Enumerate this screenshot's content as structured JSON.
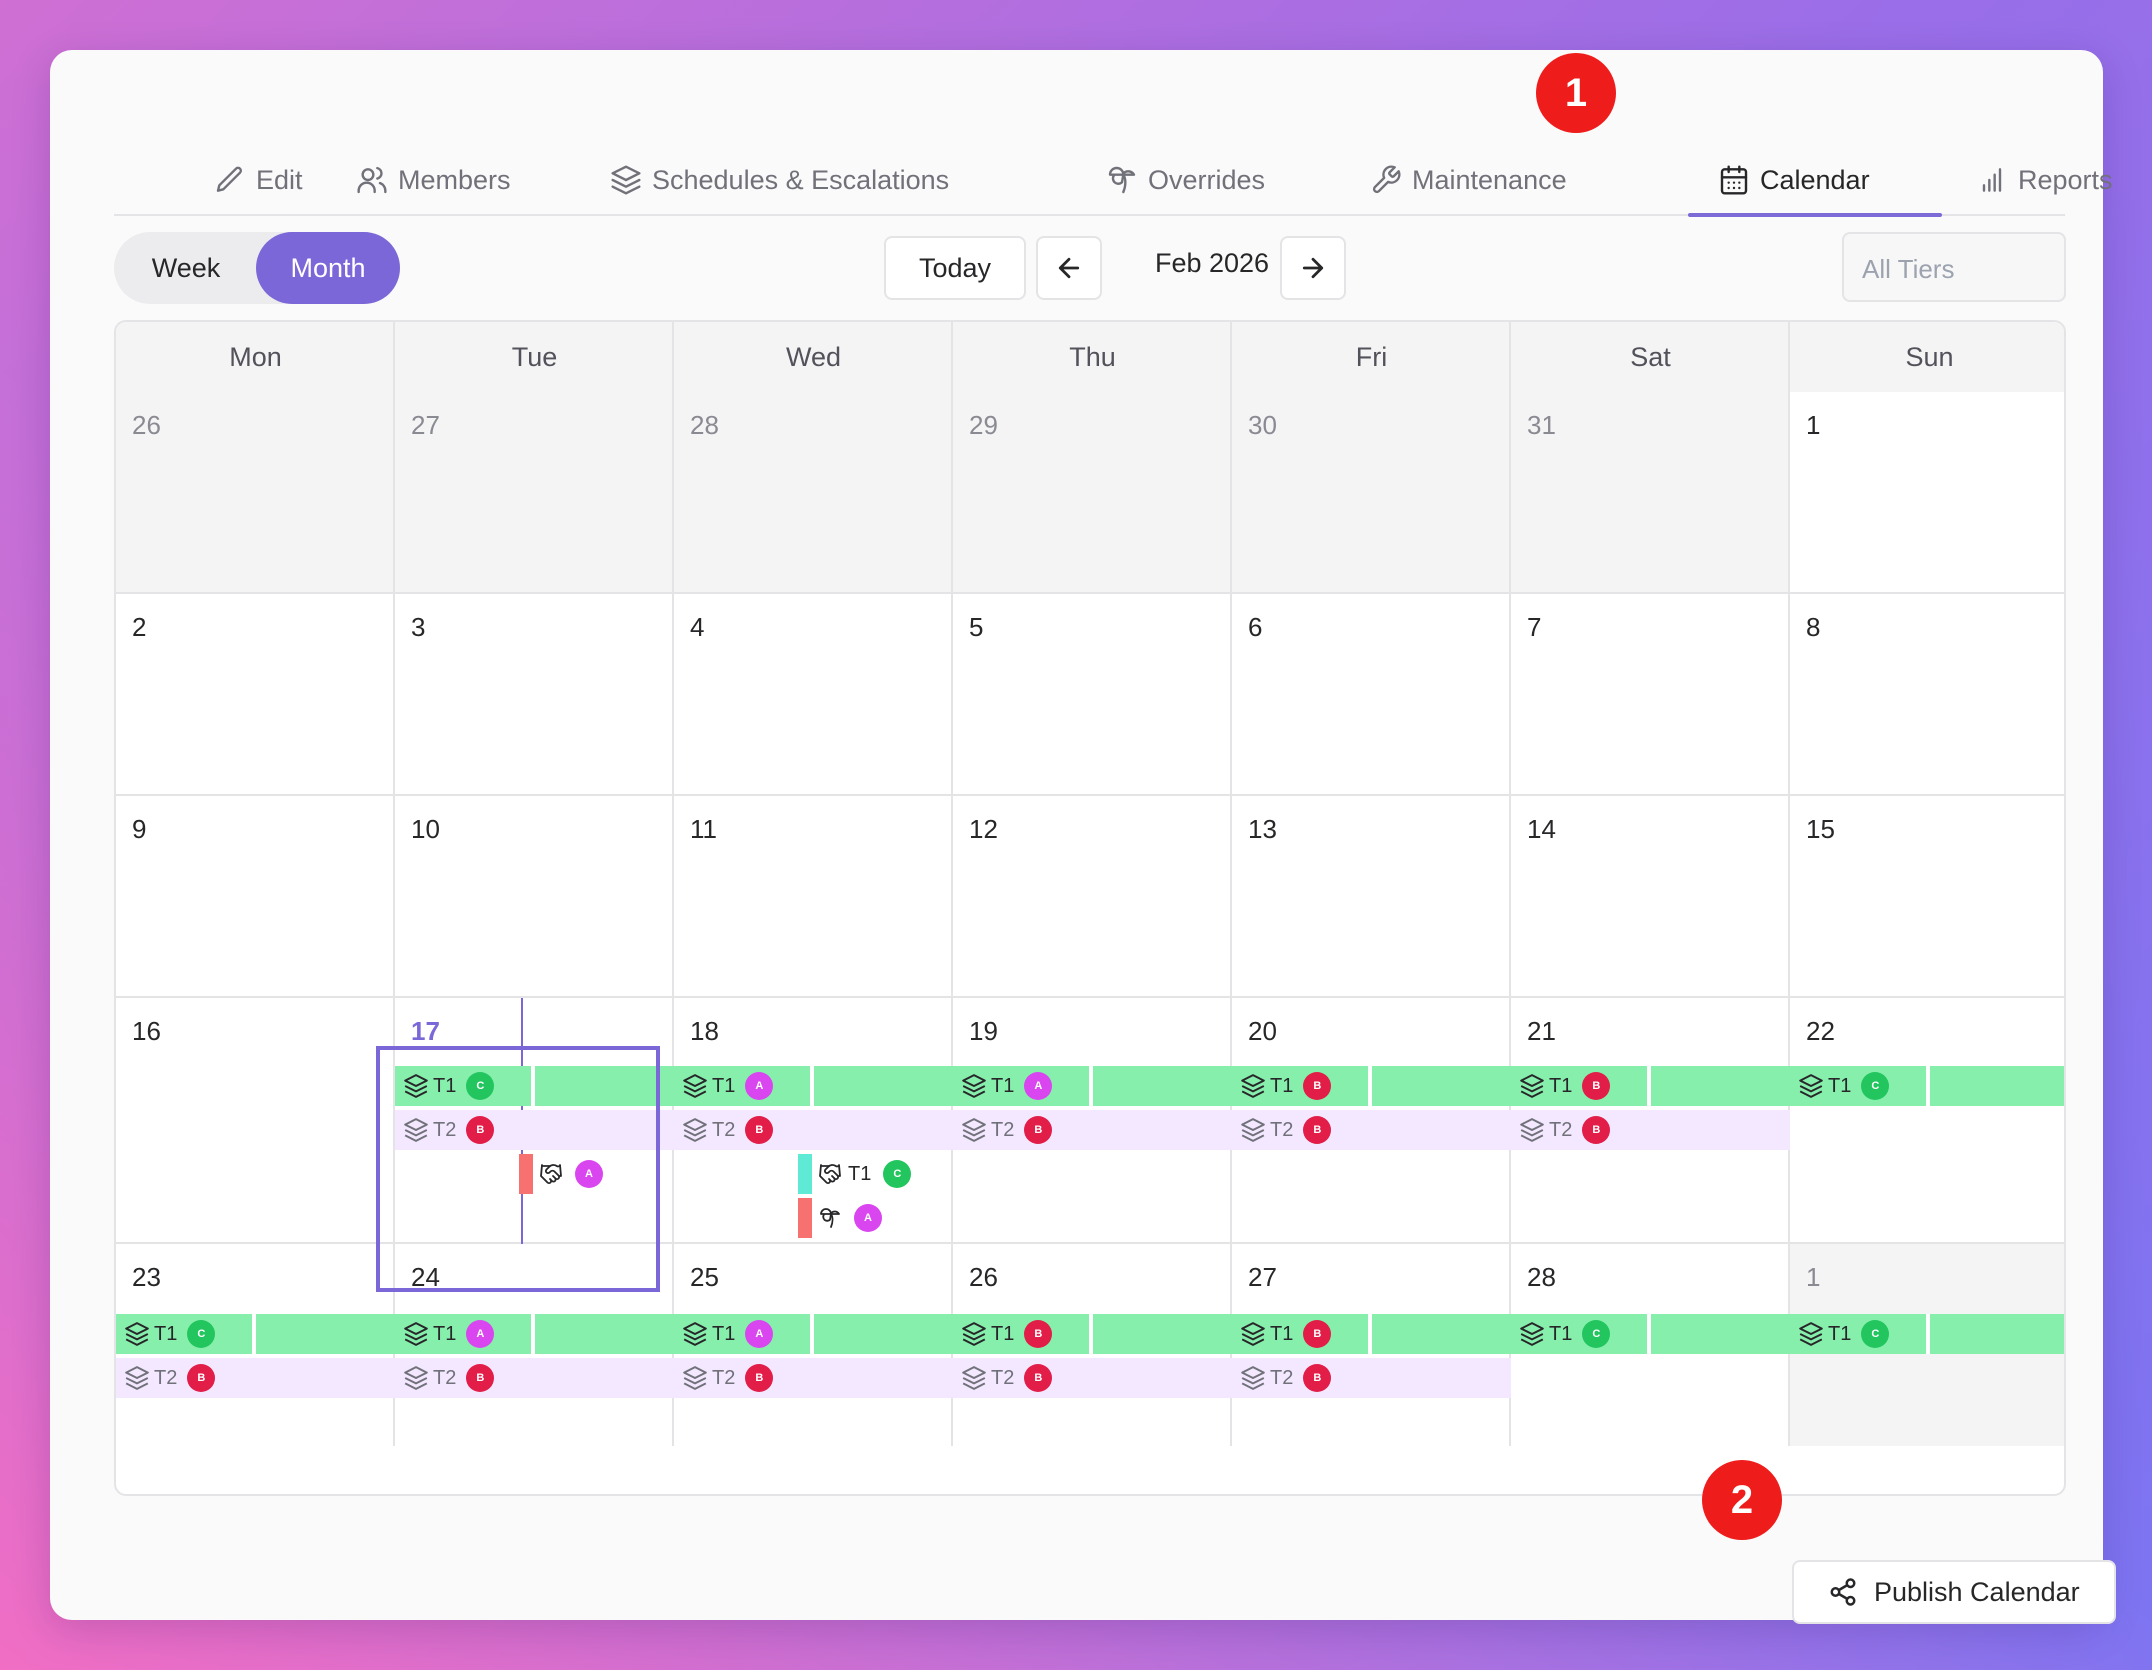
{
  "tabs": [
    {
      "label": "Edit",
      "icon": "pencil-icon"
    },
    {
      "label": "Members",
      "icon": "users-icon"
    },
    {
      "label": "Schedules & Escalations",
      "icon": "layers-icon"
    },
    {
      "label": "Overrides",
      "icon": "palm-tree-icon"
    },
    {
      "label": "Maintenance",
      "icon": "wrench-icon"
    },
    {
      "label": "Calendar",
      "icon": "calendar-icon",
      "active": true
    },
    {
      "label": "Reports",
      "icon": "bar-chart-icon"
    }
  ],
  "badges": {
    "one": "1",
    "two": "2"
  },
  "toolbar": {
    "week_label": "Week",
    "month_label": "Month",
    "view": "Month",
    "today_label": "Today",
    "month_title": "Feb 2026",
    "tiers_placeholder": "All Tiers"
  },
  "calendar": {
    "weekdays": [
      "Mon",
      "Tue",
      "Wed",
      "Thu",
      "Fri",
      "Sat",
      "Sun"
    ],
    "weeks": [
      {
        "days": [
          {
            "n": "26",
            "out": true
          },
          {
            "n": "27",
            "out": true
          },
          {
            "n": "28",
            "out": true
          },
          {
            "n": "29",
            "out": true
          },
          {
            "n": "30",
            "out": true
          },
          {
            "n": "31",
            "out": true
          },
          {
            "n": "1"
          }
        ]
      },
      {
        "days": [
          {
            "n": "2"
          },
          {
            "n": "3"
          },
          {
            "n": "4"
          },
          {
            "n": "5"
          },
          {
            "n": "6"
          },
          {
            "n": "7"
          },
          {
            "n": "8"
          }
        ]
      },
      {
        "days": [
          {
            "n": "9"
          },
          {
            "n": "10"
          },
          {
            "n": "11"
          },
          {
            "n": "12"
          },
          {
            "n": "13"
          },
          {
            "n": "14"
          },
          {
            "n": "15"
          }
        ]
      },
      {
        "days": [
          {
            "n": "16"
          },
          {
            "n": "17",
            "today": true
          },
          {
            "n": "18"
          },
          {
            "n": "19"
          },
          {
            "n": "20"
          },
          {
            "n": "21"
          },
          {
            "n": "22"
          }
        ]
      },
      {
        "days": [
          {
            "n": "23"
          },
          {
            "n": "24"
          },
          {
            "n": "25"
          },
          {
            "n": "26"
          },
          {
            "n": "27"
          },
          {
            "n": "28"
          },
          {
            "n": "1",
            "out": true
          }
        ]
      }
    ],
    "tier_labels": {
      "t1": "T1",
      "t2": "T2"
    },
    "shifts": {
      "week4": {
        "t1": [
          "",
          "C",
          "A",
          "A",
          "B",
          "B",
          "C"
        ],
        "t2": [
          "",
          "B",
          "B",
          "B",
          "B",
          "B",
          ""
        ]
      },
      "week5": {
        "t1": [
          "C",
          "A",
          "A",
          "B",
          "B",
          "C",
          "C"
        ],
        "t2": [
          "B",
          "B",
          "B",
          "B",
          "B",
          "",
          ""
        ]
      }
    },
    "events": [
      {
        "day": "17",
        "type": "handshake",
        "stripe": "#f87171",
        "tier": "",
        "avatar": "A"
      },
      {
        "day": "18",
        "type": "handshake",
        "stripe": "#5eead4",
        "tier": "T1",
        "avatar": "C"
      },
      {
        "day": "18",
        "type": "override",
        "stripe": "#f87171",
        "tier": "",
        "avatar": "A"
      }
    ],
    "avatar_colors": {
      "A": "#d946ef",
      "B": "#e11d48",
      "C": "#22c55e"
    },
    "tier1_color": "#86efac",
    "tier2_color": "#f3e8ff",
    "accent": "#7c67d8"
  },
  "publish": {
    "label": "Publish Calendar",
    "icon": "share-icon"
  }
}
